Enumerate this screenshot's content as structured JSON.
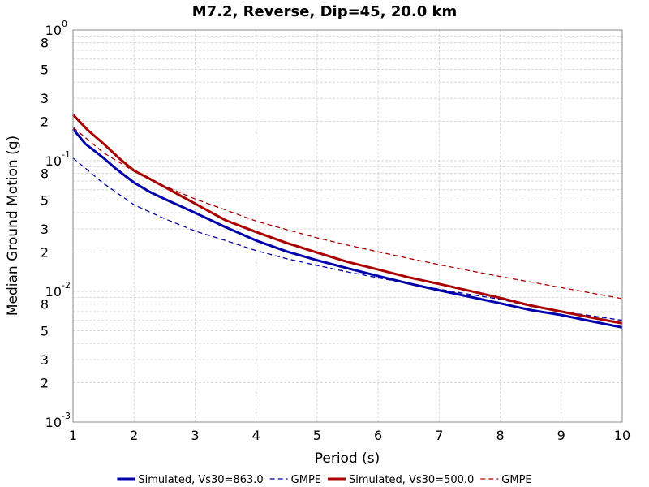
{
  "chart_data": {
    "type": "line",
    "title": "M7.2, Reverse, Dip=45, 20.0 km",
    "xlabel": "Period (s)",
    "ylabel": "Median Ground Motion (g)",
    "xlim": [
      1,
      10
    ],
    "ylim": [
      0.001,
      1
    ],
    "yscale": "log",
    "grid": true,
    "legend_position": "bottom",
    "x_ticks": [
      1,
      2,
      3,
      4,
      5,
      6,
      7,
      8,
      9,
      10
    ],
    "y_decades": [
      {
        "value": 1,
        "base": "10",
        "exp": "0"
      },
      {
        "value": 0.1,
        "base": "10",
        "exp": "-1"
      },
      {
        "value": 0.01,
        "base": "10",
        "exp": "-2"
      },
      {
        "value": 0.001,
        "base": "10",
        "exp": "-3"
      }
    ],
    "y_minor_labels": [
      "2",
      "3",
      "5",
      "8"
    ],
    "series": [
      {
        "name": "Simulated, Vs30=863.0",
        "color": "#0000aa",
        "style": "solid",
        "x": [
          1,
          1.2,
          1.5,
          1.7,
          2,
          2.25,
          2.5,
          3,
          3.5,
          4,
          4.5,
          5,
          5.5,
          6,
          6.5,
          7,
          7.5,
          8,
          8.5,
          9,
          9.5,
          10
        ],
        "y": [
          0.175,
          0.135,
          0.105,
          0.087,
          0.068,
          0.058,
          0.051,
          0.04,
          0.031,
          0.0245,
          0.0202,
          0.0173,
          0.015,
          0.0131,
          0.0115,
          0.0102,
          0.0091,
          0.0081,
          0.0072,
          0.0066,
          0.0059,
          0.0053
        ]
      },
      {
        "name": "GMPE",
        "color": "#0000aa",
        "style": "dashed",
        "x": [
          1,
          1.5,
          2,
          2.5,
          3,
          3.5,
          4,
          4.5,
          5,
          5.5,
          6,
          6.5,
          7,
          7.5,
          8,
          8.5,
          9,
          9.5,
          10
        ],
        "y": [
          0.105,
          0.067,
          0.046,
          0.036,
          0.029,
          0.0245,
          0.0205,
          0.0178,
          0.0158,
          0.0141,
          0.0127,
          0.0115,
          0.0104,
          0.0095,
          0.0087,
          0.0077,
          0.007,
          0.0065,
          0.006
        ]
      },
      {
        "name": "Simulated, Vs30=500.0",
        "color": "#aa0000",
        "style": "solid",
        "x": [
          1,
          1.25,
          1.5,
          1.75,
          2,
          2.25,
          2.5,
          3,
          3.5,
          4,
          4.5,
          5,
          5.5,
          6,
          6.5,
          7,
          7.5,
          8,
          8.5,
          9,
          9.5,
          10
        ],
        "y": [
          0.225,
          0.17,
          0.135,
          0.105,
          0.084,
          0.073,
          0.063,
          0.047,
          0.035,
          0.0285,
          0.0235,
          0.0198,
          0.0168,
          0.0147,
          0.0128,
          0.0114,
          0.0101,
          0.0089,
          0.0078,
          0.007,
          0.0063,
          0.0057
        ]
      },
      {
        "name": "GMPE",
        "color": "#aa0000",
        "style": "dashed",
        "x": [
          1,
          1.5,
          2,
          2.5,
          3,
          3.5,
          4,
          4.5,
          5,
          5.5,
          6,
          6.5,
          7,
          7.5,
          8,
          8.5,
          9,
          9.5,
          10
        ],
        "y": [
          0.18,
          0.115,
          0.083,
          0.064,
          0.051,
          0.042,
          0.0345,
          0.0297,
          0.0257,
          0.0226,
          0.0201,
          0.0179,
          0.016,
          0.0144,
          0.013,
          0.0118,
          0.0107,
          0.0097,
          0.0088
        ]
      }
    ]
  }
}
